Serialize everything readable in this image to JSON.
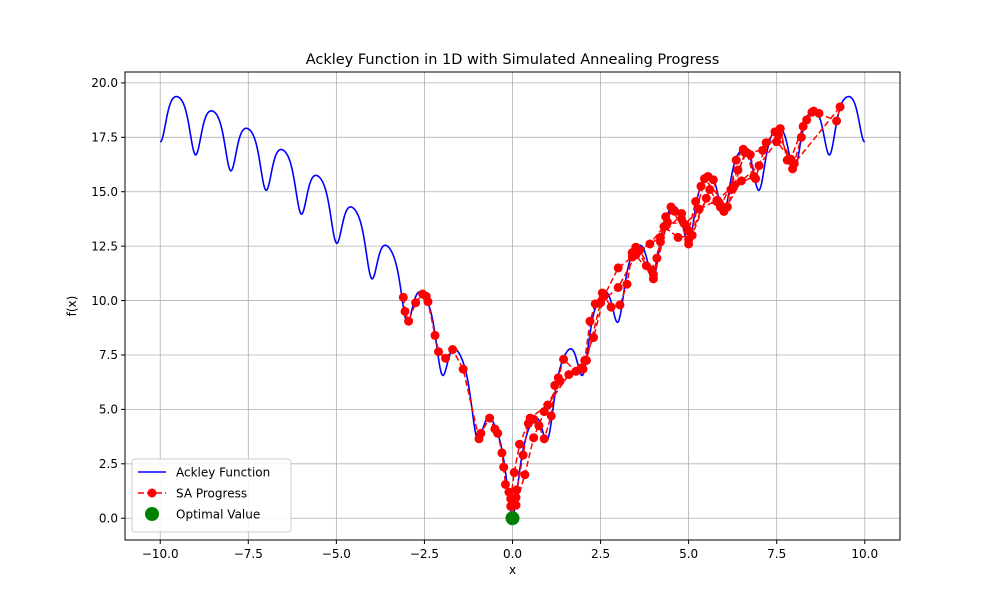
{
  "chart_data": {
    "type": "line",
    "title": "Ackley Function in 1D with Simulated Annealing Progress",
    "xlabel": "x",
    "ylabel": "f(x)",
    "xlim": [
      -11.0,
      11.0
    ],
    "ylim": [
      -1.0,
      20.5
    ],
    "xticks": [
      -10.0,
      -7.5,
      -5.0,
      -2.5,
      0.0,
      2.5,
      5.0,
      7.5,
      10.0
    ],
    "yticks": [
      0.0,
      2.5,
      5.0,
      7.5,
      10.0,
      12.5,
      15.0,
      17.5,
      20.0
    ],
    "xtick_labels": [
      "−10.0",
      "−7.5",
      "−5.0",
      "−2.5",
      "0.0",
      "2.5",
      "5.0",
      "7.5",
      "10.0"
    ],
    "ytick_labels": [
      "0.0",
      "2.5",
      "5.0",
      "7.5",
      "10.0",
      "12.5",
      "15.0",
      "17.5",
      "20.0"
    ],
    "grid": true,
    "legend_position": "lower-left",
    "series": [
      {
        "name": "Ackley Function",
        "kind": "function",
        "function": "ackley_1d",
        "x_range": [
          -10,
          10
        ],
        "color": "#0000ff",
        "style": "solid"
      },
      {
        "name": "SA Progress",
        "kind": "line-markers",
        "color": "#ff0000",
        "style": "dashed",
        "x": [
          -3.1,
          -3.05,
          -2.95,
          -2.75,
          -2.55,
          -2.45,
          -2.4,
          -2.2,
          -2.1,
          -1.9,
          -1.7,
          -1.4,
          -0.95,
          -0.9,
          -0.65,
          -0.5,
          -0.42,
          -0.3,
          -0.25,
          -0.2,
          -0.1,
          -0.05,
          0.0,
          0.05,
          0.1,
          0.12,
          0.3,
          0.45,
          0.6,
          0.75,
          0.9,
          1.1,
          1.2,
          1.3,
          1.45,
          1.8,
          2.0,
          2.05,
          2.2,
          2.35,
          2.55,
          2.8,
          3.05,
          3.25,
          3.4,
          3.5,
          3.8,
          4.0,
          4.1,
          4.2,
          4.35,
          4.6,
          4.8,
          5.0,
          5.2,
          5.35,
          5.55,
          5.7,
          5.9,
          6.0,
          6.2,
          6.35,
          6.55,
          6.75,
          6.9,
          7.2,
          7.45,
          7.6,
          7.8,
          7.95,
          8.2,
          8.35,
          8.5,
          8.7,
          9.2,
          9.3,
          8.0,
          7.5,
          7.0,
          6.5,
          6.0,
          5.5,
          5.0,
          4.5,
          4.0,
          3.5,
          3.0,
          2.5,
          2.1,
          1.6,
          1.0,
          0.5,
          0.2,
          0.05,
          -0.05,
          0.1,
          0.35,
          0.6,
          0.9,
          1.35,
          1.95,
          2.3,
          2.6,
          3.0,
          3.4,
          3.9,
          4.3,
          4.7,
          5.1,
          5.6,
          5.9,
          6.4,
          6.65,
          6.85,
          6.3,
          5.8,
          5.3,
          4.9,
          4.4,
          3.95,
          3.6,
          4.2,
          4.8,
          5.0,
          5.45,
          6.1,
          6.6,
          7.1,
          7.55,
          7.9,
          8.25,
          8.55
        ],
        "y": [
          10.15,
          9.5,
          9.05,
          9.9,
          10.3,
          10.2,
          9.95,
          8.4,
          7.65,
          7.35,
          7.75,
          6.85,
          3.65,
          3.9,
          4.6,
          4.1,
          3.9,
          3.0,
          2.35,
          1.55,
          1.2,
          0.55,
          0.08,
          0.6,
          0.95,
          1.3,
          2.9,
          4.35,
          4.55,
          4.25,
          3.65,
          4.7,
          6.1,
          6.45,
          7.3,
          6.75,
          6.85,
          7.25,
          9.05,
          9.85,
          10.35,
          9.7,
          9.8,
          10.75,
          12.2,
          12.45,
          11.6,
          11.2,
          11.95,
          12.7,
          13.85,
          14.1,
          13.75,
          13.2,
          14.55,
          15.25,
          15.7,
          15.55,
          14.4,
          14.1,
          15.1,
          16.45,
          16.95,
          16.7,
          15.6,
          17.25,
          17.75,
          17.9,
          16.45,
          16.05,
          17.5,
          18.3,
          18.65,
          18.6,
          18.25,
          18.9,
          16.3,
          17.3,
          16.2,
          15.5,
          14.1,
          14.7,
          12.8,
          14.3,
          11.0,
          12.1,
          10.6,
          9.9,
          7.25,
          6.6,
          5.2,
          4.6,
          3.4,
          2.1,
          0.9,
          0.6,
          2.0,
          3.7,
          4.9,
          6.3,
          6.9,
          8.3,
          10.2,
          11.5,
          12.0,
          12.6,
          13.4,
          12.9,
          13.0,
          15.1,
          14.3,
          16.0,
          16.8,
          15.7,
          15.3,
          14.6,
          14.2,
          13.5,
          13.6,
          11.4,
          12.3,
          12.9,
          14.0,
          12.6,
          15.6,
          14.3,
          16.8,
          16.9,
          17.6,
          16.5,
          18.0,
          18.7
        ]
      },
      {
        "name": "Optimal Value",
        "kind": "point",
        "color": "#008000",
        "x": [
          0.0
        ],
        "y": [
          0.0
        ]
      }
    ]
  }
}
